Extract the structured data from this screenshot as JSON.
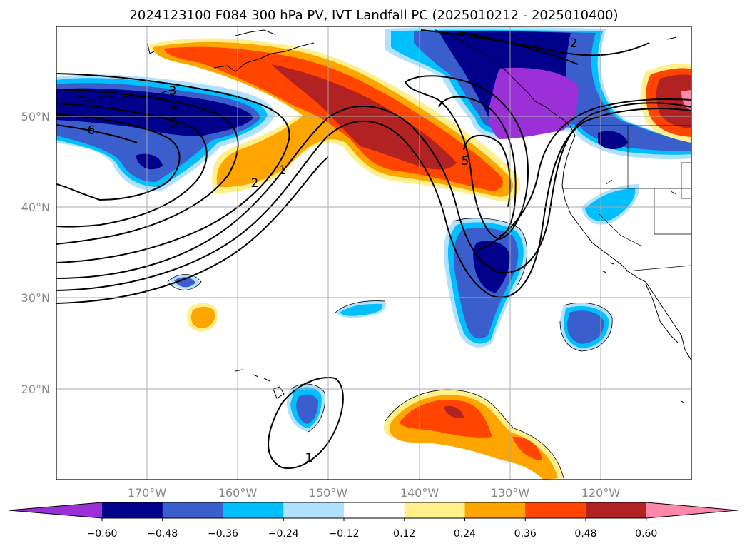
{
  "title": "2024123100 F084 300 hPa PV, IVT Landfall PC (2025010212 - 2025010400)",
  "map": {
    "lon_range": [
      -180,
      -110
    ],
    "lat_range": [
      10,
      60
    ],
    "lon_ticks": [
      "170°W",
      "160°W",
      "150°W",
      "140°W",
      "130°W",
      "120°W"
    ],
    "lat_ticks": [
      "50°N",
      "40°N",
      "30°N",
      "20°N"
    ],
    "grid": true
  },
  "colorbar": {
    "extend": "both",
    "levels": [
      "−0.60",
      "−0.48",
      "−0.36",
      "−0.24",
      "−0.12",
      "0.12",
      "0.24",
      "0.36",
      "0.48",
      "0.60"
    ],
    "colors": [
      "#9b30d8",
      "#00008b",
      "#3a5fcd",
      "#00bfff",
      "#b0e2ff",
      "#ffffff",
      "#fff08c",
      "#ffa500",
      "#ff4500",
      "#b22222",
      "#ff88aa"
    ]
  },
  "contour_labels": [
    "2",
    "3",
    "4",
    "5",
    "6",
    "1",
    "2",
    "5",
    "2",
    "1"
  ]
}
